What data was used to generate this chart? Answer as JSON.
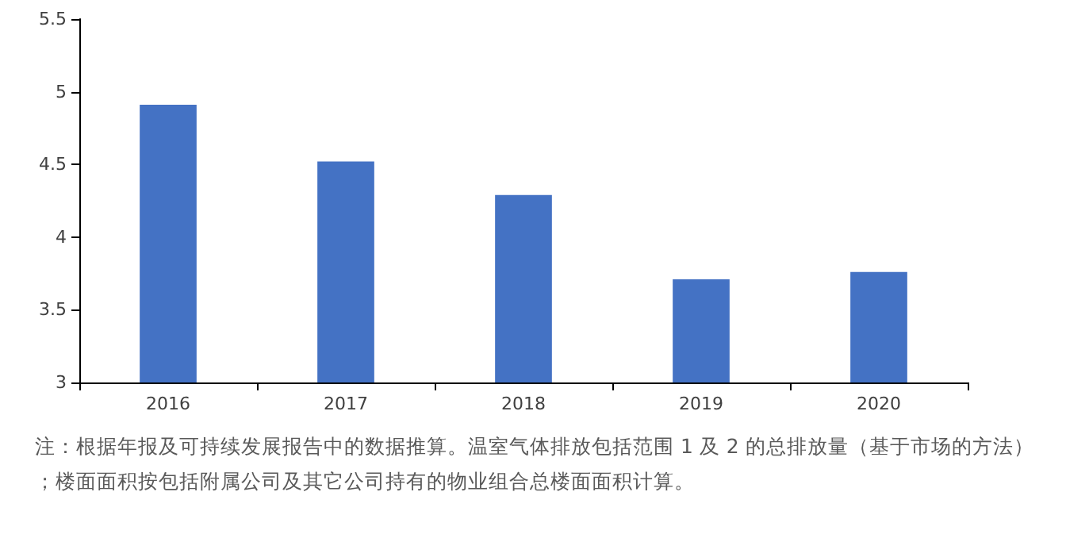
{
  "chart_data": {
    "type": "bar",
    "categories": [
      "2016",
      "2017",
      "2018",
      "2019",
      "2020"
    ],
    "values": [
      4.91,
      4.52,
      4.29,
      3.71,
      3.76
    ],
    "color": "#4472c4",
    "ylim": [
      3,
      5.5
    ],
    "yticks": [
      3,
      3.5,
      4,
      4.5,
      5,
      5.5
    ],
    "annotations": [
      "注：根据年报及可持续发展报告中的数据推算。温室气体排放包括范围 1 及 2 的总排放量（基于市场的方法）；楼面面积按包括附属公司及其它公司持有的物业组合总楼面面积计算。"
    ]
  }
}
